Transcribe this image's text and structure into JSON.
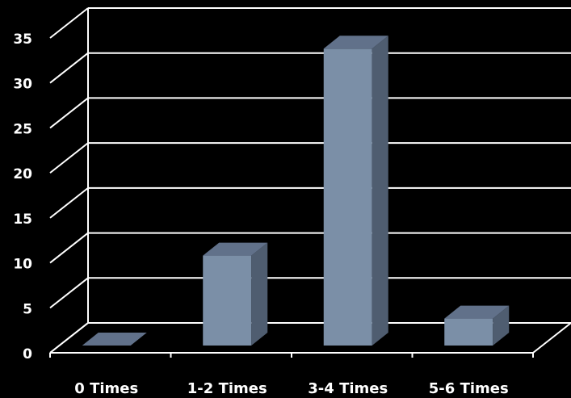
{
  "chart_data": {
    "type": "bar",
    "categories": [
      "0 Times",
      "1-2 Times",
      "3-4 Times",
      "5-6 Times"
    ],
    "values": [
      0,
      10,
      33,
      3
    ],
    "ylim": [
      0,
      35
    ],
    "yticks": [
      "0",
      "5",
      "10",
      "15",
      "20",
      "25",
      "30",
      "35"
    ],
    "grid": true,
    "colors": {
      "background": "#000000",
      "grid": "#ffffff",
      "bar_front": "#7b8fa7",
      "bar_top": "#61718a",
      "bar_side": "#4f5d70",
      "text": "#ffffff"
    }
  }
}
